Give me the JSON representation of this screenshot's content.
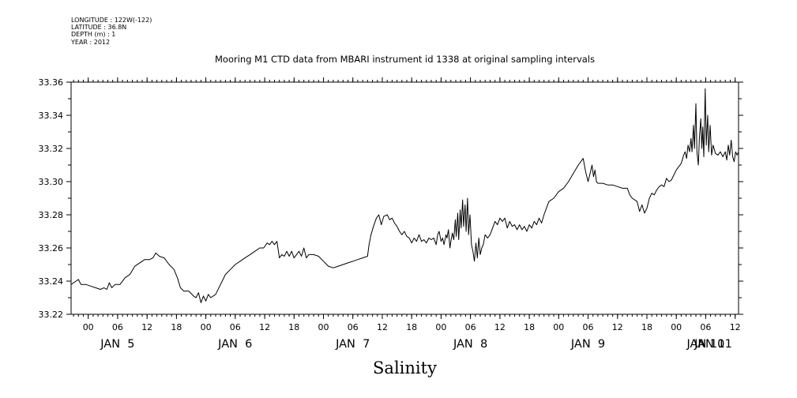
{
  "meta": {
    "longitude": "LONGITUDE : 122W(-122)",
    "latitude": "LATITUDE : 36.8N",
    "depth": "DEPTH (m) : 1",
    "year": "YEAR : 2012"
  },
  "chart_data": {
    "type": "line",
    "title": "Mooring M1 CTD data from MBARI instrument id 1338 at original sampling intervals",
    "xlabel": "Salinity",
    "ylabel": "",
    "x_units": "hours since JAN 4 12:00",
    "xlim": [
      8.5,
      144.7
    ],
    "ylim": [
      33.22,
      33.36
    ],
    "yticks": [
      "33.22",
      "33.24",
      "33.26",
      "33.28",
      "33.30",
      "33.32",
      "33.34",
      "33.36"
    ],
    "hour_ticks": [
      {
        "h": 12,
        "label": "00"
      },
      {
        "h": 18,
        "label": "06"
      },
      {
        "h": 24,
        "label": "12"
      },
      {
        "h": 30,
        "label": "18"
      },
      {
        "h": 36,
        "label": "00"
      },
      {
        "h": 42,
        "label": "06"
      },
      {
        "h": 48,
        "label": "12"
      },
      {
        "h": 54,
        "label": "18"
      },
      {
        "h": 60,
        "label": "00"
      },
      {
        "h": 66,
        "label": "06"
      },
      {
        "h": 72,
        "label": "12"
      },
      {
        "h": 78,
        "label": "18"
      },
      {
        "h": 84,
        "label": "00"
      },
      {
        "h": 90,
        "label": "06"
      },
      {
        "h": 96,
        "label": "12"
      },
      {
        "h": 102,
        "label": "18"
      },
      {
        "h": 108,
        "label": "00"
      },
      {
        "h": 114,
        "label": "06"
      },
      {
        "h": 120,
        "label": "12"
      },
      {
        "h": 126,
        "label": "18"
      },
      {
        "h": 132,
        "label": "00"
      },
      {
        "h": 138,
        "label": "06"
      },
      {
        "h": 144,
        "label": "12"
      }
    ],
    "day_labels": [
      {
        "h": 18,
        "label": "JAN  5"
      },
      {
        "h": 42,
        "label": "JAN  6"
      },
      {
        "h": 66,
        "label": "JAN  7"
      },
      {
        "h": 90,
        "label": "JAN  8"
      },
      {
        "h": 114,
        "label": "JAN  9"
      },
      {
        "h": 138,
        "label": "JAN 10"
      },
      {
        "h": 157,
        "label": "JAN 11"
      }
    ],
    "series": [
      {
        "points": [
          [
            8.5,
            33.238
          ],
          [
            9.5,
            33.24
          ],
          [
            10.0,
            33.241
          ],
          [
            10.5,
            33.238
          ],
          [
            11.5,
            33.238
          ],
          [
            12.5,
            33.237
          ],
          [
            13.5,
            33.236
          ],
          [
            14.5,
            33.235
          ],
          [
            15.2,
            33.236
          ],
          [
            15.8,
            33.235
          ],
          [
            16.3,
            33.239
          ],
          [
            16.8,
            33.236
          ],
          [
            17.5,
            33.238
          ],
          [
            18.5,
            33.238
          ],
          [
            19.5,
            33.242
          ],
          [
            20.5,
            33.244
          ],
          [
            21.5,
            33.249
          ],
          [
            22.5,
            33.251
          ],
          [
            23.5,
            33.253
          ],
          [
            24.5,
            33.253
          ],
          [
            25.2,
            33.254
          ],
          [
            25.8,
            33.257
          ],
          [
            26.5,
            33.255
          ],
          [
            27.5,
            33.254
          ],
          [
            28.5,
            33.25
          ],
          [
            29.5,
            33.247
          ],
          [
            30.2,
            33.242
          ],
          [
            30.8,
            33.236
          ],
          [
            31.5,
            33.234
          ],
          [
            32.5,
            33.234
          ],
          [
            33.5,
            33.231
          ],
          [
            34.0,
            33.23
          ],
          [
            34.5,
            33.233
          ],
          [
            35.0,
            33.227
          ],
          [
            35.5,
            33.231
          ],
          [
            36.0,
            33.228
          ],
          [
            36.5,
            33.232
          ],
          [
            37.0,
            33.23
          ],
          [
            38.0,
            33.232
          ],
          [
            39.0,
            33.238
          ],
          [
            40.0,
            33.244
          ],
          [
            41.0,
            33.247
          ],
          [
            42.0,
            33.25
          ],
          [
            43.0,
            33.252
          ],
          [
            44.0,
            33.254
          ],
          [
            45.0,
            33.256
          ],
          [
            46.0,
            33.258
          ],
          [
            47.0,
            33.26
          ],
          [
            47.8,
            33.26
          ],
          [
            48.5,
            33.263
          ],
          [
            49.0,
            33.262
          ],
          [
            49.5,
            33.264
          ],
          [
            50.0,
            33.262
          ],
          [
            50.5,
            33.264
          ],
          [
            51.0,
            33.254
          ],
          [
            51.5,
            33.256
          ],
          [
            52.0,
            33.255
          ],
          [
            52.5,
            33.258
          ],
          [
            53.0,
            33.255
          ],
          [
            53.5,
            33.258
          ],
          [
            54.0,
            33.254
          ],
          [
            54.5,
            33.256
          ],
          [
            55.0,
            33.258
          ],
          [
            55.5,
            33.255
          ],
          [
            56.0,
            33.26
          ],
          [
            56.5,
            33.254
          ],
          [
            57.0,
            33.256
          ],
          [
            58.0,
            33.256
          ],
          [
            59.0,
            33.255
          ],
          [
            60.0,
            33.252
          ],
          [
            61.0,
            33.249
          ],
          [
            62.0,
            33.248
          ],
          [
            63.0,
            33.249
          ],
          [
            64.0,
            33.25
          ],
          [
            65.0,
            33.251
          ],
          [
            66.0,
            33.252
          ],
          [
            67.0,
            33.253
          ],
          [
            68.0,
            33.254
          ],
          [
            69.0,
            33.255
          ],
          [
            69.3,
            33.262
          ],
          [
            69.7,
            33.268
          ],
          [
            70.2,
            33.273
          ],
          [
            70.8,
            33.278
          ],
          [
            71.3,
            33.28
          ],
          [
            71.8,
            33.274
          ],
          [
            72.3,
            33.279
          ],
          [
            73.0,
            33.28
          ],
          [
            73.5,
            33.277
          ],
          [
            74.0,
            33.278
          ],
          [
            74.5,
            33.275
          ],
          [
            75.0,
            33.273
          ],
          [
            75.5,
            33.27
          ],
          [
            76.0,
            33.268
          ],
          [
            76.5,
            33.27
          ],
          [
            77.0,
            33.267
          ],
          [
            77.5,
            33.266
          ],
          [
            78.0,
            33.263
          ],
          [
            78.5,
            33.266
          ],
          [
            79.0,
            33.264
          ],
          [
            79.5,
            33.268
          ],
          [
            80.0,
            33.264
          ],
          [
            80.5,
            33.265
          ],
          [
            81.0,
            33.263
          ],
          [
            81.5,
            33.266
          ],
          [
            82.0,
            33.265
          ],
          [
            82.5,
            33.266
          ],
          [
            83.0,
            33.262
          ],
          [
            83.3,
            33.268
          ],
          [
            83.6,
            33.27
          ],
          [
            84.0,
            33.264
          ],
          [
            84.3,
            33.266
          ],
          [
            84.6,
            33.262
          ],
          [
            85.0,
            33.268
          ],
          [
            85.2,
            33.266
          ],
          [
            85.5,
            33.271
          ],
          [
            85.8,
            33.26
          ],
          [
            86.0,
            33.264
          ],
          [
            86.3,
            33.269
          ],
          [
            86.6,
            33.265
          ],
          [
            86.9,
            33.277
          ],
          [
            87.1,
            33.267
          ],
          [
            87.4,
            33.281
          ],
          [
            87.6,
            33.265
          ],
          [
            87.9,
            33.283
          ],
          [
            88.1,
            33.272
          ],
          [
            88.4,
            33.289
          ],
          [
            88.6,
            33.273
          ],
          [
            88.9,
            33.286
          ],
          [
            89.1,
            33.27
          ],
          [
            89.4,
            33.29
          ],
          [
            89.6,
            33.268
          ],
          [
            89.9,
            33.28
          ],
          [
            90.2,
            33.262
          ],
          [
            90.5,
            33.258
          ],
          [
            90.8,
            33.252
          ],
          [
            91.1,
            33.263
          ],
          [
            91.4,
            33.254
          ],
          [
            91.7,
            33.266
          ],
          [
            92.0,
            33.256
          ],
          [
            92.3,
            33.26
          ],
          [
            92.6,
            33.262
          ],
          [
            93.0,
            33.268
          ],
          [
            93.5,
            33.266
          ],
          [
            94.0,
            33.268
          ],
          [
            94.5,
            33.272
          ],
          [
            95.0,
            33.276
          ],
          [
            95.5,
            33.274
          ],
          [
            96.0,
            33.278
          ],
          [
            96.5,
            33.276
          ],
          [
            97.0,
            33.278
          ],
          [
            97.5,
            33.272
          ],
          [
            98.0,
            33.276
          ],
          [
            98.5,
            33.273
          ],
          [
            99.0,
            33.274
          ],
          [
            99.5,
            33.271
          ],
          [
            100.0,
            33.274
          ],
          [
            100.5,
            33.271
          ],
          [
            101.0,
            33.273
          ],
          [
            101.5,
            33.27
          ],
          [
            102.0,
            33.274
          ],
          [
            102.5,
            33.272
          ],
          [
            103.0,
            33.276
          ],
          [
            103.5,
            33.274
          ],
          [
            104.0,
            33.278
          ],
          [
            104.5,
            33.275
          ],
          [
            105.0,
            33.28
          ],
          [
            105.5,
            33.284
          ],
          [
            106.0,
            33.288
          ],
          [
            107.0,
            33.29
          ],
          [
            108.0,
            33.294
          ],
          [
            109.0,
            33.296
          ],
          [
            110.0,
            33.3
          ],
          [
            111.0,
            33.305
          ],
          [
            112.0,
            33.31
          ],
          [
            112.5,
            33.312
          ],
          [
            113.0,
            33.314
          ],
          [
            113.5,
            33.306
          ],
          [
            114.0,
            33.3
          ],
          [
            114.5,
            33.306
          ],
          [
            114.8,
            33.31
          ],
          [
            115.1,
            33.303
          ],
          [
            115.4,
            33.307
          ],
          [
            115.7,
            33.3
          ],
          [
            116.0,
            33.299
          ],
          [
            117.0,
            33.299
          ],
          [
            118.0,
            33.298
          ],
          [
            119.0,
            33.298
          ],
          [
            120.0,
            33.297
          ],
          [
            121.0,
            33.296
          ],
          [
            122.0,
            33.296
          ],
          [
            122.5,
            33.292
          ],
          [
            123.0,
            33.29
          ],
          [
            123.5,
            33.289
          ],
          [
            124.0,
            33.288
          ],
          [
            124.5,
            33.282
          ],
          [
            125.0,
            33.286
          ],
          [
            125.5,
            33.281
          ],
          [
            126.0,
            33.284
          ],
          [
            126.5,
            33.29
          ],
          [
            127.0,
            33.293
          ],
          [
            127.5,
            33.292
          ],
          [
            128.0,
            33.295
          ],
          [
            128.5,
            33.297
          ],
          [
            129.0,
            33.298
          ],
          [
            129.5,
            33.297
          ],
          [
            130.0,
            33.302
          ],
          [
            130.5,
            33.3
          ],
          [
            131.0,
            33.301
          ],
          [
            131.5,
            33.304
          ],
          [
            132.0,
            33.307
          ],
          [
            132.5,
            33.309
          ],
          [
            133.0,
            33.311
          ],
          [
            133.2,
            33.313
          ],
          [
            133.5,
            33.316
          ],
          [
            133.8,
            33.318
          ],
          [
            134.1,
            33.314
          ],
          [
            134.4,
            33.322
          ],
          [
            134.7,
            33.318
          ],
          [
            135.0,
            33.326
          ],
          [
            135.2,
            33.318
          ],
          [
            135.5,
            33.334
          ],
          [
            135.7,
            33.32
          ],
          [
            136.0,
            33.347
          ],
          [
            136.2,
            33.318
          ],
          [
            136.5,
            33.31
          ],
          [
            136.7,
            33.326
          ],
          [
            137.0,
            33.338
          ],
          [
            137.2,
            33.32
          ],
          [
            137.4,
            33.333
          ],
          [
            137.6,
            33.315
          ],
          [
            137.9,
            33.356
          ],
          [
            138.1,
            33.322
          ],
          [
            138.4,
            33.34
          ],
          [
            138.6,
            33.318
          ],
          [
            138.9,
            33.334
          ],
          [
            139.2,
            33.316
          ],
          [
            139.5,
            33.322
          ],
          [
            140.0,
            33.317
          ],
          [
            140.5,
            33.316
          ],
          [
            141.0,
            33.318
          ],
          [
            141.5,
            33.315
          ],
          [
            142.0,
            33.318
          ],
          [
            142.3,
            33.313
          ],
          [
            142.6,
            33.322
          ],
          [
            142.9,
            33.316
          ],
          [
            143.2,
            33.325
          ],
          [
            143.5,
            33.315
          ],
          [
            143.8,
            33.312
          ],
          [
            144.1,
            33.318
          ],
          [
            144.4,
            33.316
          ],
          [
            144.7,
            33.318
          ]
        ]
      }
    ]
  }
}
